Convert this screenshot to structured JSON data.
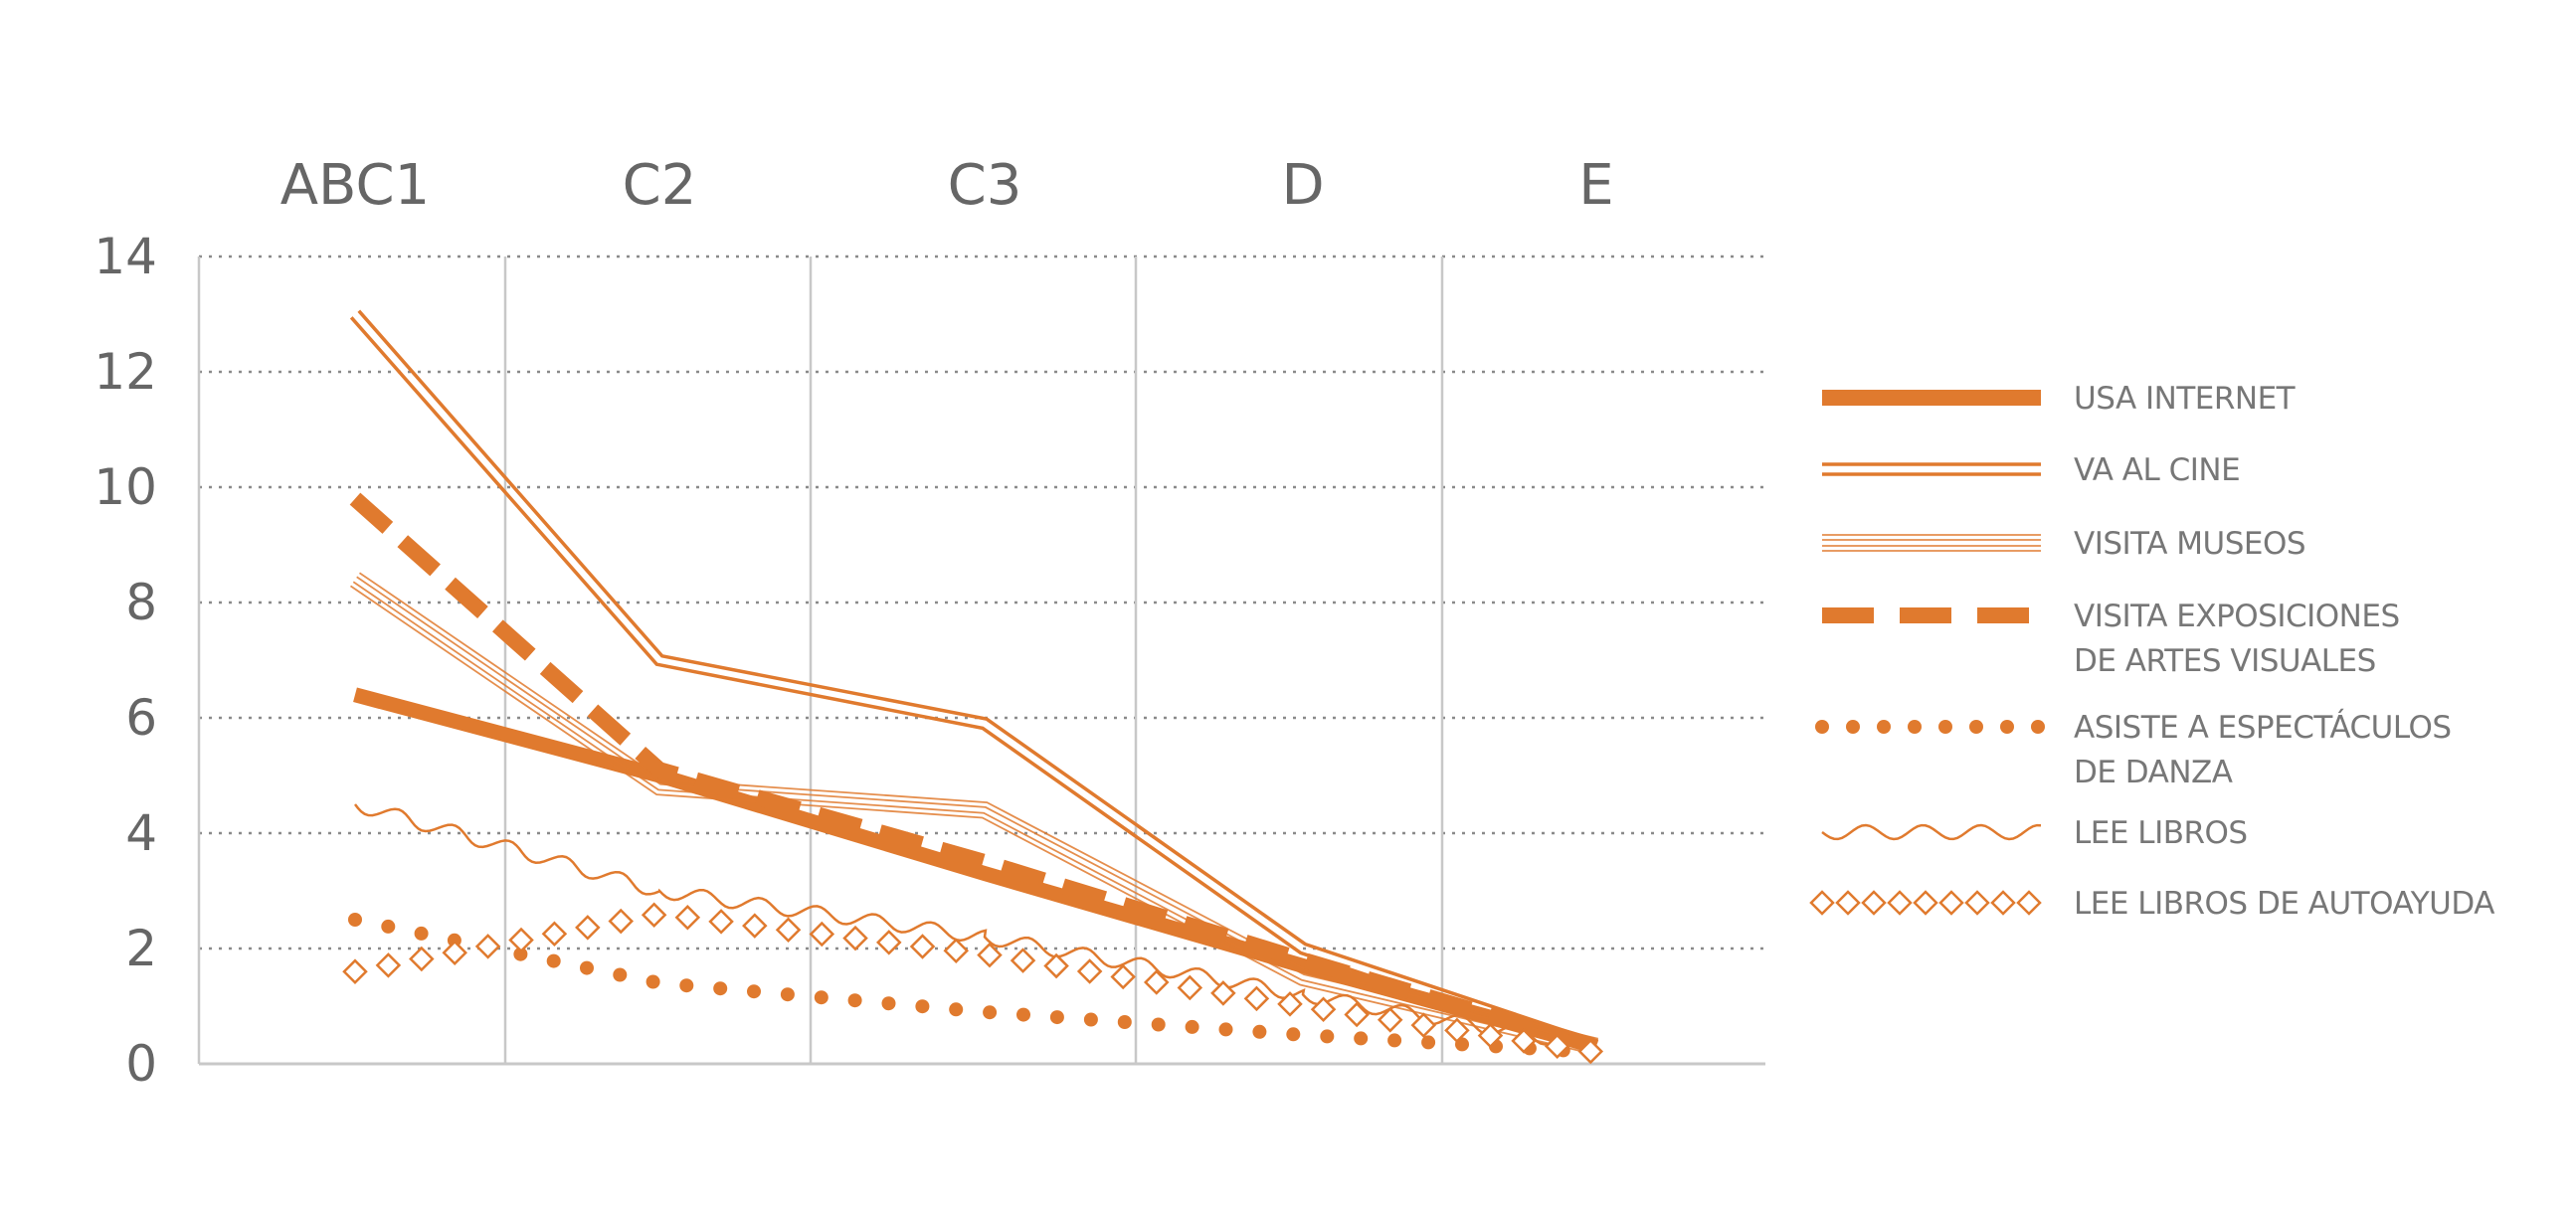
{
  "chart_data": {
    "type": "line",
    "title": "",
    "xlabel": "",
    "ylabel": "",
    "categories": [
      "ABC1",
      "C2",
      "C3",
      "D",
      "E"
    ],
    "ylim": [
      0,
      14
    ],
    "yticks": [
      "0",
      "2",
      "4",
      "6",
      "8",
      "10",
      "12",
      "14"
    ],
    "grid": {
      "horizontal": "dotted",
      "vertical": "solid"
    },
    "legend_position": "right",
    "accent_color": "#E07A2E",
    "series": [
      {
        "name": [
          "USA INTERNET"
        ],
        "style": "thick-solid",
        "values": [
          6.4,
          5.0,
          3.3,
          1.7,
          0.3
        ]
      },
      {
        "name": [
          "VA AL CINE"
        ],
        "style": "double-line",
        "values": [
          13.0,
          7.0,
          5.9,
          2.0,
          0.3
        ]
      },
      {
        "name": [
          "VISITA MUSEOS"
        ],
        "style": "triple-hairline",
        "values": [
          8.4,
          4.8,
          4.4,
          1.5,
          0.3
        ]
      },
      {
        "name": [
          "VISITA EXPOSICIONES",
          "DE ARTES  VISUALES"
        ],
        "style": "thick-dashed",
        "values": [
          9.8,
          5.1,
          3.5,
          1.8,
          0.3
        ]
      },
      {
        "name": [
          "ASISTE A ESPECTÁCULOS",
          "DE DANZA"
        ],
        "style": "dotted",
        "values": [
          2.5,
          1.4,
          0.9,
          0.5,
          0.2
        ]
      },
      {
        "name": [
          "LEE LIBROS"
        ],
        "style": "wavy",
        "values": [
          4.5,
          3.0,
          2.2,
          1.2,
          0.3
        ]
      },
      {
        "name": [
          "LEE LIBROS DE AUTOAYUDA"
        ],
        "style": "diamonds",
        "values": [
          1.6,
          2.6,
          1.9,
          1.0,
          0.2
        ]
      }
    ]
  }
}
